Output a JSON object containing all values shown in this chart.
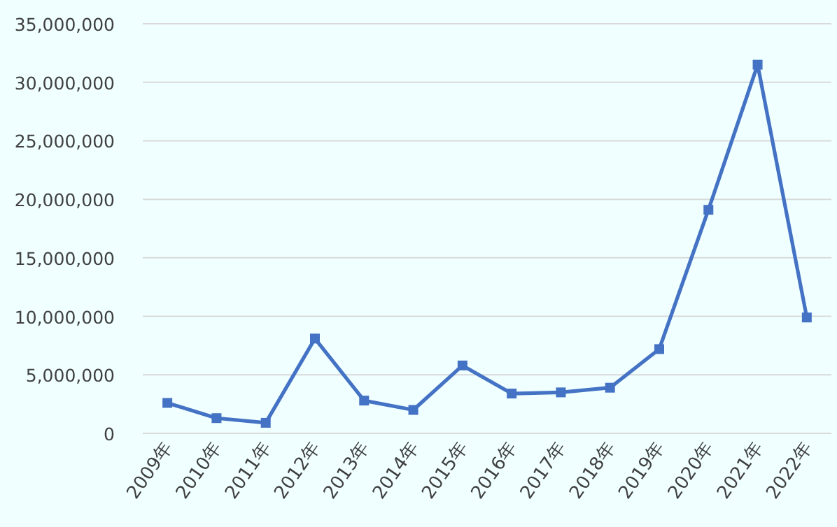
{
  "chart_data": {
    "type": "line",
    "categories": [
      "2009年",
      "2010年",
      "2011年",
      "2012年",
      "2013年",
      "2014年",
      "2015年",
      "2016年",
      "2017年",
      "2018年",
      "2019年",
      "2020年",
      "2021年",
      "2022年"
    ],
    "series": [
      {
        "color": "#4472c4",
        "values": [
          2600000,
          1300000,
          900000,
          8100000,
          2800000,
          2000000,
          5800000,
          3400000,
          3500000,
          3900000,
          7200000,
          19100000,
          31500000,
          9900000
        ]
      }
    ],
    "ylim": [
      0,
      35000000
    ],
    "yticks": [
      {
        "value": 0,
        "label": "0"
      },
      {
        "value": 5000000,
        "label": "5,000,000"
      },
      {
        "value": 10000000,
        "label": "10,000,000"
      },
      {
        "value": 15000000,
        "label": "15,000,000"
      },
      {
        "value": 20000000,
        "label": "20,000,000"
      },
      {
        "value": 25000000,
        "label": "25,000,000"
      },
      {
        "value": 30000000,
        "label": "30,000,000"
      },
      {
        "value": 35000000,
        "label": "35,000,000"
      }
    ],
    "grid": "y",
    "marker": "square",
    "line_style": "solid"
  }
}
